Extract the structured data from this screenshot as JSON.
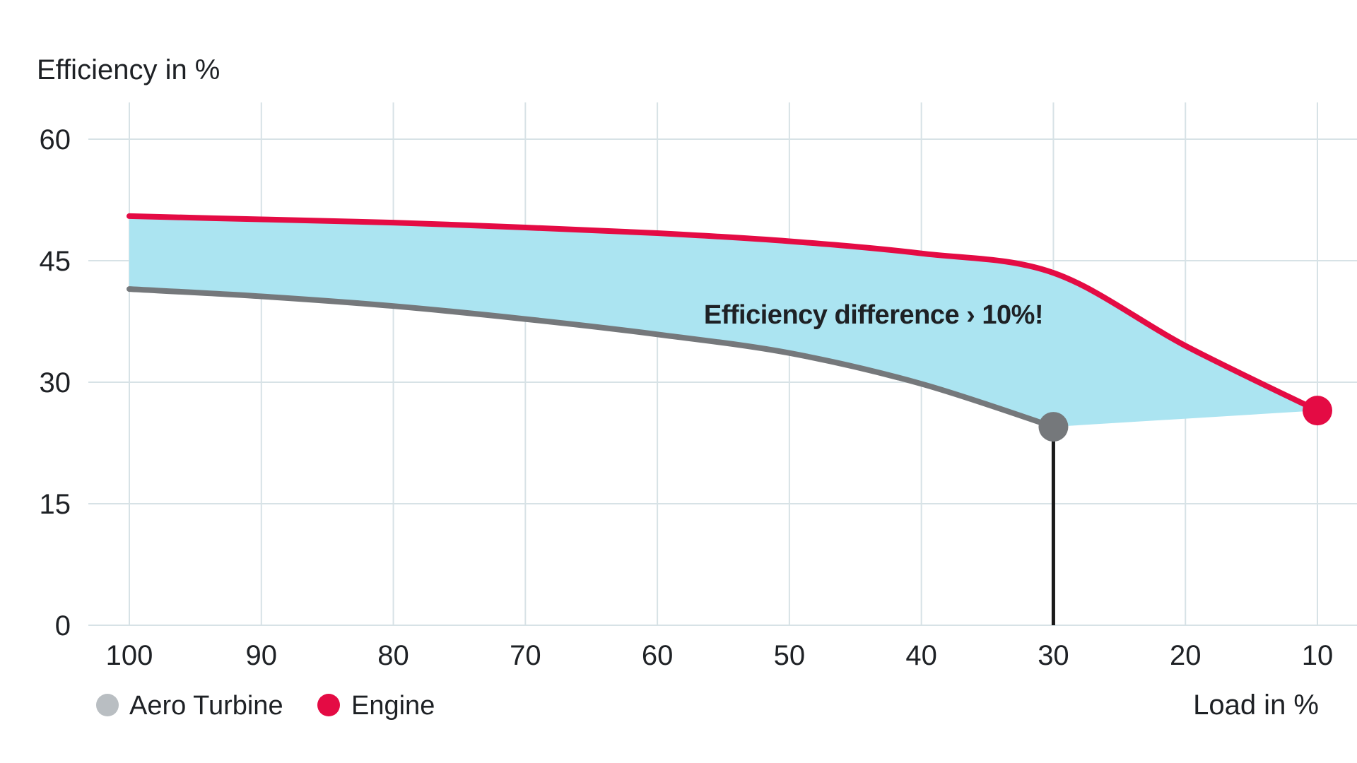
{
  "page": {
    "background_color": "#ffffff",
    "text_color": "#1e2125",
    "gridline_color": "#d7e2e6"
  },
  "chart_data": {
    "type": "area",
    "title": "",
    "xlabel": "Load in %",
    "ylabel": "Efficiency in %",
    "x_axis": {
      "label": "Load in %",
      "ticks": [
        100,
        90,
        80,
        70,
        60,
        50,
        40,
        30,
        20,
        10
      ],
      "reversed": true
    },
    "y_axis": {
      "label": "Efficiency in %",
      "ticks": [
        0,
        15,
        30,
        45,
        60
      ],
      "range": [
        0,
        64.5
      ]
    },
    "grid": true,
    "series": [
      {
        "name": "Aero Turbine",
        "color": "#75787b",
        "line_width": 8,
        "x": [
          100,
          90,
          80,
          70,
          60,
          50,
          40,
          30
        ],
        "values": [
          41.5,
          40.6,
          39.4,
          37.8,
          35.9,
          33.6,
          29.8,
          24.5
        ],
        "end_marker": true,
        "end_marker_color": "#75787b",
        "dropline_at_x": 30,
        "dropline_color": "#1a1a1a"
      },
      {
        "name": "Engine",
        "color": "#e40b44",
        "line_width": 8,
        "x": [
          100,
          90,
          80,
          70,
          60,
          50,
          40,
          30,
          20,
          10
        ],
        "values": [
          50.5,
          50.1,
          49.7,
          49.1,
          48.4,
          47.4,
          45.9,
          43.5,
          34.5,
          26.5
        ],
        "end_marker": true,
        "end_marker_color": "#e40b44"
      }
    ],
    "fill_between": {
      "upper": "Engine",
      "lower": "Aero Turbine",
      "color": "#abe4f1"
    },
    "annotation": {
      "text": "Efficiency difference › 10%!"
    },
    "legend": [
      {
        "label": "Aero Turbine",
        "marker_color": "#b9bec2"
      },
      {
        "label": "Engine",
        "marker_color": "#e40b44"
      }
    ],
    "legend_position": "bottom-left"
  }
}
